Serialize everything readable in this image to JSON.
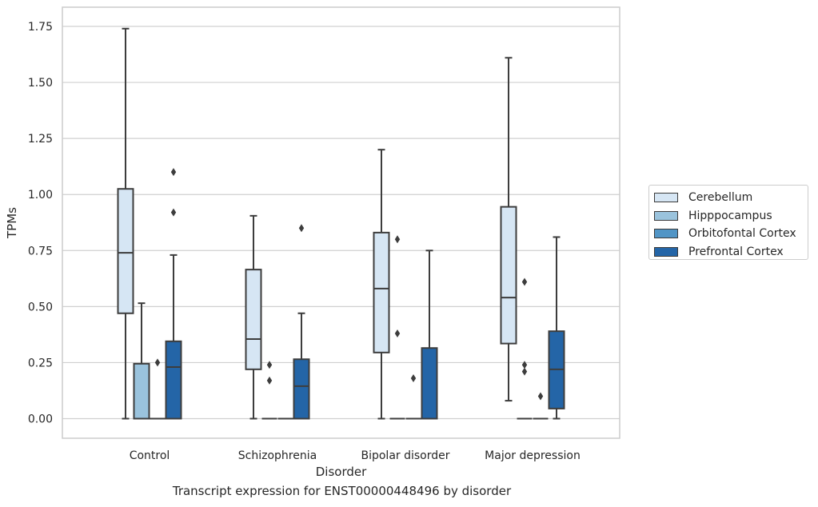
{
  "chart_data": {
    "type": "box",
    "xlabel": "Disorder",
    "ylabel": "TPMs",
    "caption": "Transcript expression for ENST00000448496 by disorder",
    "categories": [
      "Control",
      "Schizophrenia",
      "Bipolar disorder",
      "Major depression"
    ],
    "ylim": [
      -0.085,
      1.83
    ],
    "yticks": [
      "0.00",
      "0.25",
      "0.50",
      "0.75",
      "1.00",
      "1.25",
      "1.50",
      "1.75"
    ],
    "grid": true,
    "legend_position": "right",
    "series": [
      {
        "name": "Cerebellum",
        "color": "#d6e6f4",
        "boxes": [
          {
            "whislo": 0.0,
            "q1": 0.47,
            "med": 0.74,
            "q3": 1.025,
            "whishi": 1.74,
            "fliers": []
          },
          {
            "whislo": 0.0,
            "q1": 0.22,
            "med": 0.355,
            "q3": 0.665,
            "whishi": 0.905,
            "fliers": []
          },
          {
            "whislo": 0.0,
            "q1": 0.295,
            "med": 0.58,
            "q3": 0.83,
            "whishi": 1.2,
            "fliers": []
          },
          {
            "whislo": 0.08,
            "q1": 0.335,
            "med": 0.54,
            "q3": 0.945,
            "whishi": 1.61,
            "fliers": []
          }
        ]
      },
      {
        "name": "Hipppocampus",
        "color": "#9ac3dd",
        "boxes": [
          {
            "whislo": 0.0,
            "q1": 0.0,
            "med": 0.0,
            "q3": 0.245,
            "whishi": 0.515,
            "fliers": []
          },
          {
            "whislo": 0.0,
            "q1": 0.0,
            "med": 0.0,
            "q3": 0.0,
            "whishi": 0.0,
            "fliers": [
              0.24,
              0.17
            ]
          },
          {
            "whislo": 0.0,
            "q1": 0.0,
            "med": 0.0,
            "q3": 0.0,
            "whishi": 0.0,
            "fliers": [
              0.8,
              0.38
            ]
          },
          {
            "whislo": 0.0,
            "q1": 0.0,
            "med": 0.0,
            "q3": 0.0,
            "whishi": 0.0,
            "fliers": [
              0.61,
              0.24,
              0.21
            ]
          }
        ]
      },
      {
        "name": "Orbitofontal Cortex",
        "color": "#5195c6",
        "boxes": [
          {
            "whislo": 0.0,
            "q1": 0.0,
            "med": 0.0,
            "q3": 0.0,
            "whishi": 0.0,
            "fliers": [
              0.25
            ]
          },
          {
            "whislo": 0.0,
            "q1": 0.0,
            "med": 0.0,
            "q3": 0.0,
            "whishi": 0.0,
            "fliers": []
          },
          {
            "whislo": 0.0,
            "q1": 0.0,
            "med": 0.0,
            "q3": 0.0,
            "whishi": 0.0,
            "fliers": [
              0.18
            ]
          },
          {
            "whislo": 0.0,
            "q1": 0.0,
            "med": 0.0,
            "q3": 0.0,
            "whishi": 0.0,
            "fliers": [
              0.1
            ]
          }
        ]
      },
      {
        "name": "Prefrontal Cortex",
        "color": "#2465a7",
        "boxes": [
          {
            "whislo": 0.0,
            "q1": 0.0,
            "med": 0.23,
            "q3": 0.345,
            "whishi": 0.73,
            "fliers": [
              1.1,
              0.92
            ]
          },
          {
            "whislo": 0.0,
            "q1": 0.0,
            "med": 0.145,
            "q3": 0.265,
            "whishi": 0.47,
            "fliers": [
              0.85
            ]
          },
          {
            "whislo": 0.0,
            "q1": 0.0,
            "med": 0.0,
            "q3": 0.315,
            "whishi": 0.75,
            "fliers": []
          },
          {
            "whislo": 0.0,
            "q1": 0.045,
            "med": 0.22,
            "q3": 0.39,
            "whishi": 0.81,
            "fliers": []
          }
        ]
      }
    ]
  }
}
